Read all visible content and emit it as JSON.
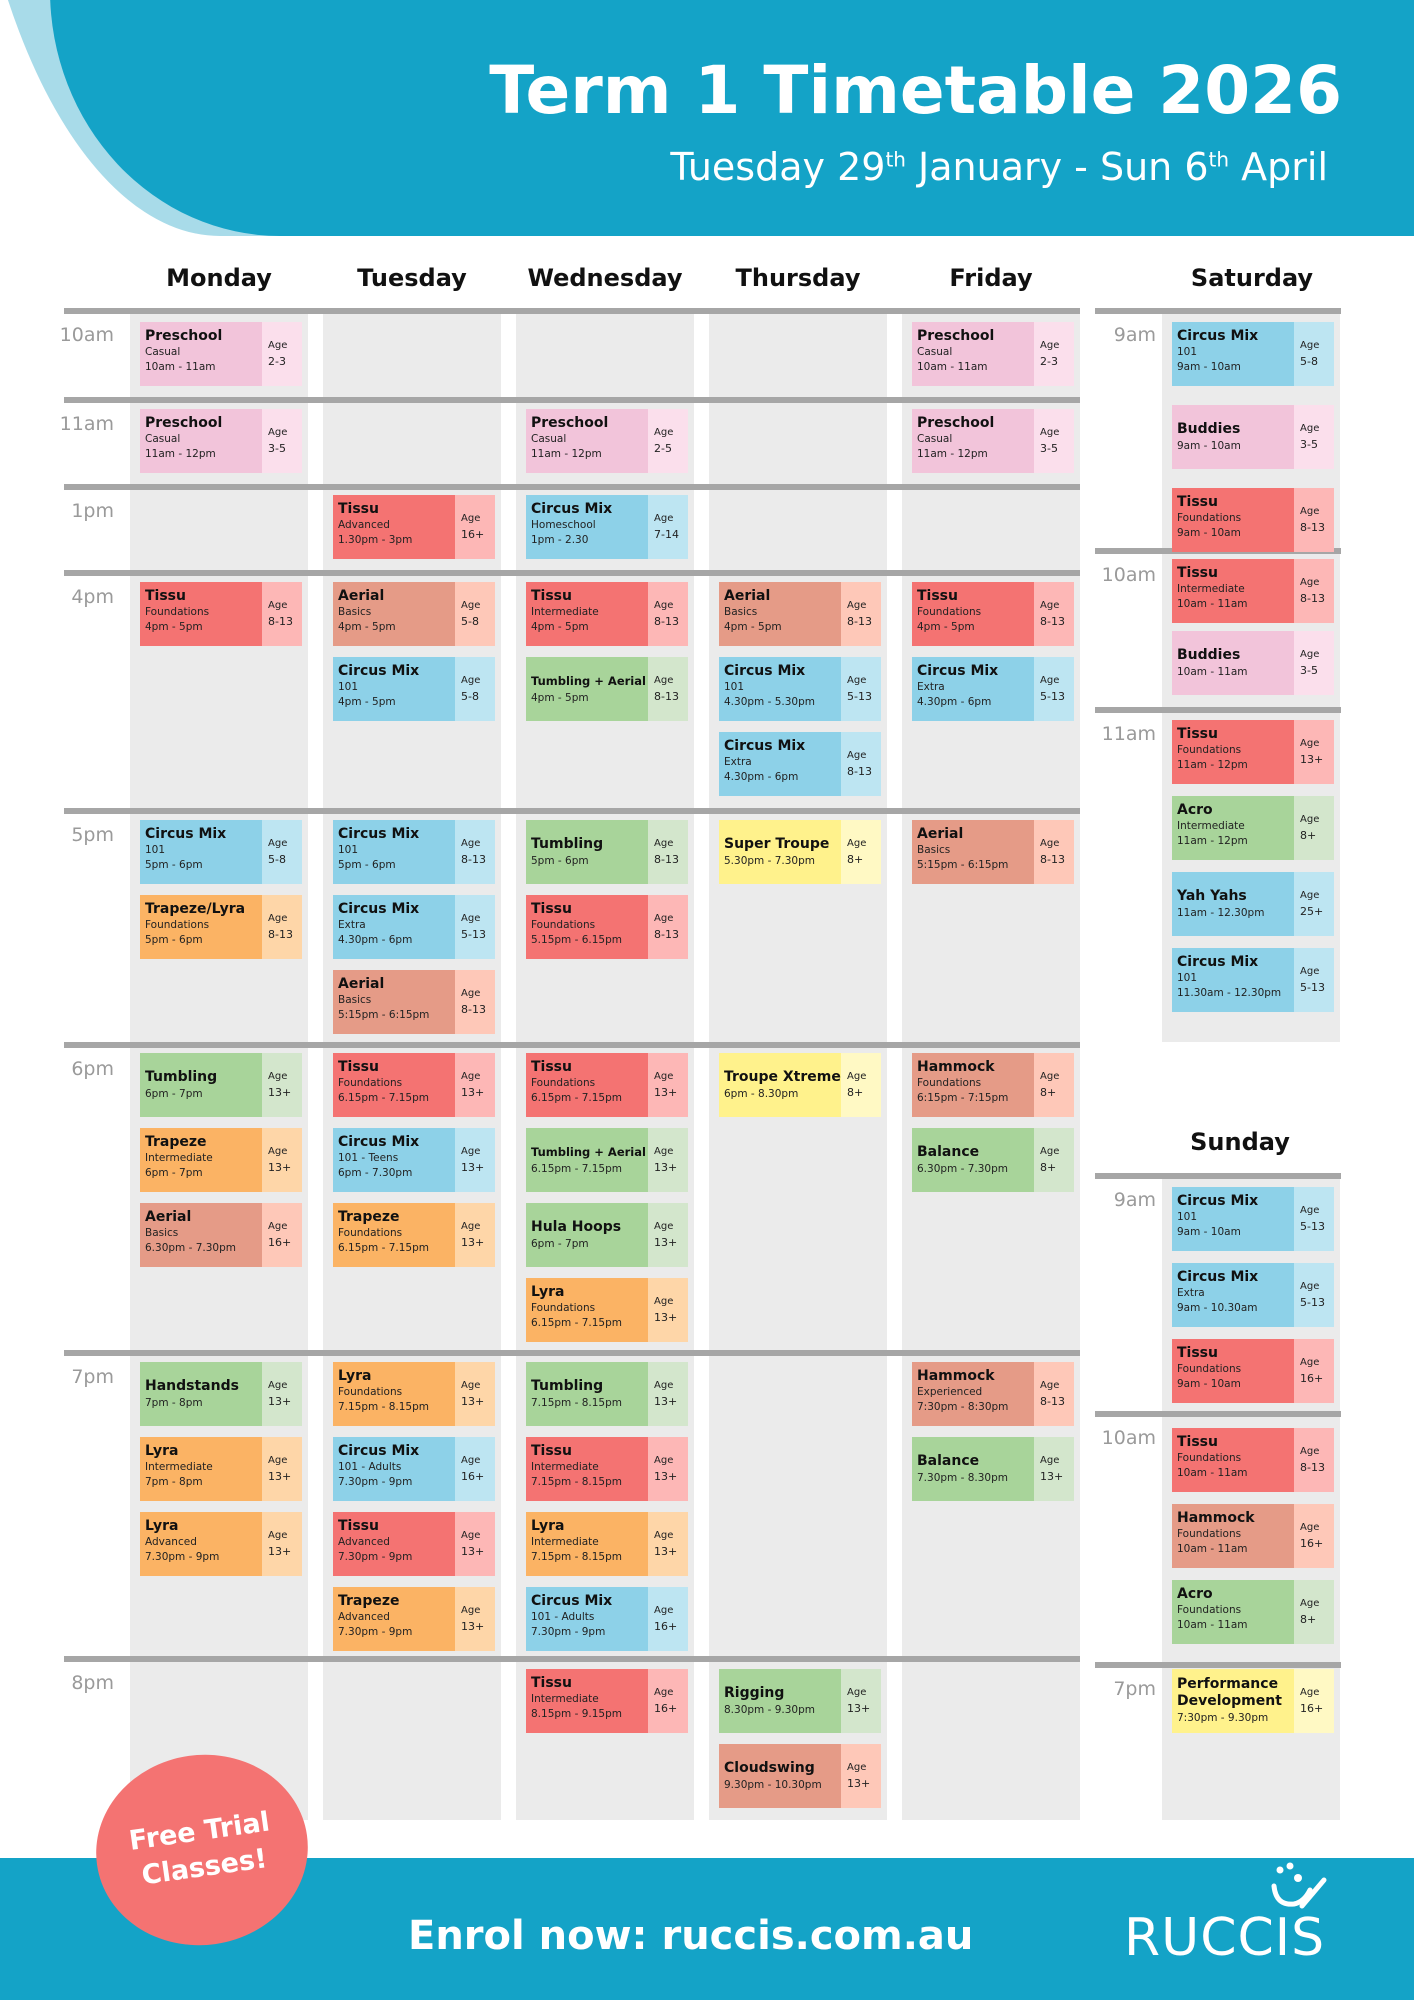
{
  "header": {
    "title": "Term 1 Timetable 2026",
    "subtitle_start": "Tuesday 29",
    "subtitle_sup1": "th",
    "subtitle_mid": " January - Sun 6",
    "subtitle_sup2": "th",
    "subtitle_end": " April"
  },
  "colors": {
    "brand_blue": "#14a3c7",
    "pink": "#f2c4da",
    "pink_age": "#fbdfec",
    "red": "#f47372",
    "red_age": "#fdb7b6",
    "salmon": "#e59b87",
    "salmon_age": "#fec8b8",
    "blue": "#8dd1e8",
    "blue_age": "#bde5f2",
    "green": "#a8d49a",
    "green_age": "#d3e6cc",
    "orange": "#fbb364",
    "orange_age": "#fed6a8",
    "yellow": "#fff28c",
    "yellow_age": "#fff9c4",
    "badge": "#f47372"
  },
  "weekdays": [
    "Monday",
    "Tuesday",
    "Wednesday",
    "Thursday",
    "Friday"
  ],
  "weekday_times": [
    "10am",
    "11am",
    "1pm",
    "4pm",
    "5pm",
    "6pm",
    "7pm",
    "8pm"
  ],
  "saturday": {
    "label": "Saturday",
    "times": [
      "9am",
      "10am",
      "11am"
    ]
  },
  "sunday": {
    "label": "Sunday",
    "times": [
      "9am",
      "10am",
      "7pm"
    ]
  },
  "age_label": "Age",
  "classes": [
    {
      "day": "Monday",
      "slot": "10am",
      "name": "Preschool",
      "level": "Casual",
      "time": "10am - 11am",
      "age": "2-3",
      "color": "pink"
    },
    {
      "day": "Friday",
      "slot": "10am",
      "name": "Preschool",
      "level": "Casual",
      "time": "10am - 11am",
      "age": "2-3",
      "color": "pink"
    },
    {
      "day": "Monday",
      "slot": "11am",
      "name": "Preschool",
      "level": "Casual",
      "time": "11am - 12pm",
      "age": "3-5",
      "color": "pink"
    },
    {
      "day": "Wednesday",
      "slot": "11am",
      "name": "Preschool",
      "level": "Casual",
      "time": "11am - 12pm",
      "age": "2-5",
      "color": "pink"
    },
    {
      "day": "Friday",
      "slot": "11am",
      "name": "Preschool",
      "level": "Casual",
      "time": "11am - 12pm",
      "age": "3-5",
      "color": "pink"
    },
    {
      "day": "Tuesday",
      "slot": "1pm",
      "name": "Tissu",
      "level": "Advanced",
      "time": "1.30pm - 3pm",
      "age": "16+",
      "color": "red"
    },
    {
      "day": "Wednesday",
      "slot": "1pm",
      "name": "Circus Mix",
      "level": "Homeschool",
      "time": "1pm - 2.30",
      "age": "7-14",
      "color": "blue"
    },
    {
      "day": "Monday",
      "slot": "4pm",
      "name": "Tissu",
      "level": "Foundations",
      "time": "4pm - 5pm",
      "age": "8-13",
      "color": "red"
    },
    {
      "day": "Tuesday",
      "slot": "4pm",
      "name": "Aerial",
      "level": "Basics",
      "time": "4pm - 5pm",
      "age": "5-8",
      "color": "salmon"
    },
    {
      "day": "Tuesday",
      "slot": "4pm",
      "name": "Circus Mix",
      "level": "101",
      "time": "4pm - 5pm",
      "age": "5-8",
      "color": "blue"
    },
    {
      "day": "Wednesday",
      "slot": "4pm",
      "name": "Tissu",
      "level": "Intermediate",
      "time": "4pm - 5pm",
      "age": "8-13",
      "color": "red"
    },
    {
      "day": "Wednesday",
      "slot": "4pm",
      "name": "Tumbling + Aerial",
      "level": "",
      "time": "4pm - 5pm",
      "age": "8-13",
      "color": "green",
      "small": true
    },
    {
      "day": "Thursday",
      "slot": "4pm",
      "name": "Aerial",
      "level": "Basics",
      "time": "4pm - 5pm",
      "age": "8-13",
      "color": "salmon"
    },
    {
      "day": "Thursday",
      "slot": "4pm",
      "name": "Circus Mix",
      "level": "101",
      "time": "4.30pm - 5.30pm",
      "age": "5-13",
      "color": "blue"
    },
    {
      "day": "Thursday",
      "slot": "4pm",
      "name": "Circus Mix",
      "level": "Extra",
      "time": "4.30pm - 6pm",
      "age": "8-13",
      "color": "blue"
    },
    {
      "day": "Friday",
      "slot": "4pm",
      "name": "Tissu",
      "level": "Foundations",
      "time": "4pm - 5pm",
      "age": "8-13",
      "color": "red"
    },
    {
      "day": "Friday",
      "slot": "4pm",
      "name": "Circus Mix",
      "level": "Extra",
      "time": "4.30pm - 6pm",
      "age": "5-13",
      "color": "blue"
    },
    {
      "day": "Monday",
      "slot": "5pm",
      "name": "Circus Mix",
      "level": "101",
      "time": "5pm - 6pm",
      "age": "5-8",
      "color": "blue"
    },
    {
      "day": "Monday",
      "slot": "5pm",
      "name": "Trapeze/Lyra",
      "level": "Foundations",
      "time": "5pm - 6pm",
      "age": "8-13",
      "color": "orange"
    },
    {
      "day": "Tuesday",
      "slot": "5pm",
      "name": "Circus Mix",
      "level": "101",
      "time": "5pm - 6pm",
      "age": "8-13",
      "color": "blue"
    },
    {
      "day": "Tuesday",
      "slot": "5pm",
      "name": "Circus Mix",
      "level": "Extra",
      "time": "4.30pm - 6pm",
      "age": "5-13",
      "color": "blue"
    },
    {
      "day": "Tuesday",
      "slot": "5pm",
      "name": "Aerial",
      "level": "Basics",
      "time": "5:15pm - 6:15pm",
      "age": "8-13",
      "color": "salmon"
    },
    {
      "day": "Wednesday",
      "slot": "5pm",
      "name": "Tumbling",
      "level": "",
      "time": "5pm - 6pm",
      "age": "8-13",
      "color": "green"
    },
    {
      "day": "Wednesday",
      "slot": "5pm",
      "name": "Tissu",
      "level": "Foundations",
      "time": "5.15pm - 6.15pm",
      "age": "8-13",
      "color": "red"
    },
    {
      "day": "Thursday",
      "slot": "5pm",
      "name": "Super Troupe",
      "level": "",
      "time": "5.30pm - 7.30pm",
      "age": "8+",
      "color": "yellow"
    },
    {
      "day": "Friday",
      "slot": "5pm",
      "name": "Aerial",
      "level": "Basics",
      "time": "5:15pm - 6:15pm",
      "age": "8-13",
      "color": "salmon"
    },
    {
      "day": "Monday",
      "slot": "6pm",
      "name": "Tumbling",
      "level": "",
      "time": "6pm - 7pm",
      "age": "13+",
      "color": "green"
    },
    {
      "day": "Monday",
      "slot": "6pm",
      "name": "Trapeze",
      "level": "Intermediate",
      "time": "6pm - 7pm",
      "age": "13+",
      "color": "orange"
    },
    {
      "day": "Monday",
      "slot": "6pm",
      "name": "Aerial",
      "level": "Basics",
      "time": "6.30pm - 7.30pm",
      "age": "16+",
      "color": "salmon"
    },
    {
      "day": "Tuesday",
      "slot": "6pm",
      "name": "Tissu",
      "level": "Foundations",
      "time": "6.15pm - 7.15pm",
      "age": "13+",
      "color": "red"
    },
    {
      "day": "Tuesday",
      "slot": "6pm",
      "name": "Circus Mix",
      "level": "101 - Teens",
      "time": "6pm - 7.30pm",
      "age": "13+",
      "color": "blue"
    },
    {
      "day": "Tuesday",
      "slot": "6pm",
      "name": "Trapeze",
      "level": "Foundations",
      "time": "6.15pm - 7.15pm",
      "age": "13+",
      "color": "orange"
    },
    {
      "day": "Wednesday",
      "slot": "6pm",
      "name": "Tissu",
      "level": "Foundations",
      "time": "6.15pm - 7.15pm",
      "age": "13+",
      "color": "red"
    },
    {
      "day": "Wednesday",
      "slot": "6pm",
      "name": "Tumbling + Aerial",
      "level": "",
      "time": "6.15pm - 7.15pm",
      "age": "13+",
      "color": "green",
      "small": true
    },
    {
      "day": "Wednesday",
      "slot": "6pm",
      "name": "Hula Hoops",
      "level": "",
      "time": "6pm - 7pm",
      "age": "13+",
      "color": "green"
    },
    {
      "day": "Wednesday",
      "slot": "6pm",
      "name": "Lyra",
      "level": "Foundations",
      "time": "6.15pm - 7.15pm",
      "age": "13+",
      "color": "orange"
    },
    {
      "day": "Thursday",
      "slot": "6pm",
      "name": "Troupe Xtreme",
      "level": "",
      "time": "6pm - 8.30pm",
      "age": "8+",
      "color": "yellow"
    },
    {
      "day": "Friday",
      "slot": "6pm",
      "name": "Hammock",
      "level": "Foundations",
      "time": "6:15pm - 7:15pm",
      "age": "8+",
      "color": "salmon"
    },
    {
      "day": "Friday",
      "slot": "6pm",
      "name": "Balance",
      "level": "",
      "time": "6.30pm - 7.30pm",
      "age": "8+",
      "color": "green"
    },
    {
      "day": "Monday",
      "slot": "7pm",
      "name": "Handstands",
      "level": "",
      "time": "7pm - 8pm",
      "age": "13+",
      "color": "green"
    },
    {
      "day": "Monday",
      "slot": "7pm",
      "name": "Lyra",
      "level": "Intermediate",
      "time": "7pm - 8pm",
      "age": "13+",
      "color": "orange"
    },
    {
      "day": "Monday",
      "slot": "7pm",
      "name": "Lyra",
      "level": "Advanced",
      "time": "7.30pm - 9pm",
      "age": "13+",
      "color": "orange"
    },
    {
      "day": "Tuesday",
      "slot": "7pm",
      "name": "Lyra",
      "level": "Foundations",
      "time": "7.15pm - 8.15pm",
      "age": "13+",
      "color": "orange"
    },
    {
      "day": "Tuesday",
      "slot": "7pm",
      "name": "Circus Mix",
      "level": "101 - Adults",
      "time": "7.30pm - 9pm",
      "age": "16+",
      "color": "blue"
    },
    {
      "day": "Tuesday",
      "slot": "7pm",
      "name": "Tissu",
      "level": "Advanced",
      "time": "7.30pm - 9pm",
      "age": "13+",
      "color": "red"
    },
    {
      "day": "Tuesday",
      "slot": "7pm",
      "name": "Trapeze",
      "level": "Advanced",
      "time": "7.30pm - 9pm",
      "age": "13+",
      "color": "orange"
    },
    {
      "day": "Wednesday",
      "slot": "7pm",
      "name": "Tumbling",
      "level": "",
      "time": "7.15pm - 8.15pm",
      "age": "13+",
      "color": "green"
    },
    {
      "day": "Wednesday",
      "slot": "7pm",
      "name": "Tissu",
      "level": "Intermediate",
      "time": "7.15pm - 8.15pm",
      "age": "13+",
      "color": "red"
    },
    {
      "day": "Wednesday",
      "slot": "7pm",
      "name": "Lyra",
      "level": "Intermediate",
      "time": "7.15pm - 8.15pm",
      "age": "13+",
      "color": "orange"
    },
    {
      "day": "Wednesday",
      "slot": "7pm",
      "name": "Circus Mix",
      "level": "101 - Adults",
      "time": "7.30pm - 9pm",
      "age": "16+",
      "color": "blue"
    },
    {
      "day": "Friday",
      "slot": "7pm",
      "name": "Hammock",
      "level": "Experienced",
      "time": "7:30pm - 8:30pm",
      "age": "8-13",
      "color": "salmon"
    },
    {
      "day": "Friday",
      "slot": "7pm",
      "name": "Balance",
      "level": "",
      "time": "7.30pm - 8.30pm",
      "age": "13+",
      "color": "green"
    },
    {
      "day": "Wednesday",
      "slot": "8pm",
      "name": "Tissu",
      "level": "Intermediate",
      "time": "8.15pm - 9.15pm",
      "age": "16+",
      "color": "red"
    },
    {
      "day": "Thursday",
      "slot": "8pm",
      "name": "Rigging",
      "level": "",
      "time": "8.30pm - 9.30pm",
      "age": "13+",
      "color": "green"
    },
    {
      "day": "Thursday",
      "slot": "8pm",
      "name": "Cloudswing",
      "level": "",
      "time": "9.30pm - 10.30pm",
      "age": "13+",
      "color": "salmon"
    },
    {
      "day": "Saturday",
      "slot": "9am",
      "name": "Circus Mix",
      "level": "101",
      "time": "9am - 10am",
      "age": "5-8",
      "color": "blue"
    },
    {
      "day": "Saturday",
      "slot": "9am",
      "name": "Buddies",
      "level": "",
      "time": "9am - 10am",
      "age": "3-5",
      "color": "pink"
    },
    {
      "day": "Saturday",
      "slot": "9am",
      "name": "Tissu",
      "level": "Foundations",
      "time": "9am - 10am",
      "age": "8-13",
      "color": "red"
    },
    {
      "day": "Saturday",
      "slot": "10am",
      "name": "Tissu",
      "level": "Intermediate",
      "time": "10am - 11am",
      "age": "8-13",
      "color": "red"
    },
    {
      "day": "Saturday",
      "slot": "10am",
      "name": "Buddies",
      "level": "",
      "time": "10am - 11am",
      "age": "3-5",
      "color": "pink"
    },
    {
      "day": "Saturday",
      "slot": "11am",
      "name": "Tissu",
      "level": "Foundations",
      "time": "11am - 12pm",
      "age": "13+",
      "color": "red"
    },
    {
      "day": "Saturday",
      "slot": "11am",
      "name": "Acro",
      "level": "Intermediate",
      "time": "11am - 12pm",
      "age": "8+",
      "color": "green"
    },
    {
      "day": "Saturday",
      "slot": "11am",
      "name": "Yah Yahs",
      "level": "",
      "time": "11am - 12.30pm",
      "age": "25+",
      "color": "blue"
    },
    {
      "day": "Saturday",
      "slot": "11am",
      "name": "Circus Mix",
      "level": "101",
      "time": "11.30am - 12.30pm",
      "age": "5-13",
      "color": "blue"
    },
    {
      "day": "Sunday",
      "slot": "9am",
      "name": "Circus Mix",
      "level": "101",
      "time": "9am - 10am",
      "age": "5-13",
      "color": "blue"
    },
    {
      "day": "Sunday",
      "slot": "9am",
      "name": "Circus Mix",
      "level": "Extra",
      "time": "9am - 10.30am",
      "age": "5-13",
      "color": "blue"
    },
    {
      "day": "Sunday",
      "slot": "9am",
      "name": "Tissu",
      "level": "Foundations",
      "time": "9am - 10am",
      "age": "16+",
      "color": "red"
    },
    {
      "day": "Sunday",
      "slot": "10am",
      "name": "Tissu",
      "level": "Foundations",
      "time": "10am - 11am",
      "age": "8-13",
      "color": "red"
    },
    {
      "day": "Sunday",
      "slot": "10am",
      "name": "Hammock",
      "level": "Foundations",
      "time": "10am - 11am",
      "age": "16+",
      "color": "salmon"
    },
    {
      "day": "Sunday",
      "slot": "10am",
      "name": "Acro",
      "level": "Foundations",
      "time": "10am - 11am",
      "age": "8+",
      "color": "green"
    },
    {
      "day": "Sunday",
      "slot": "7pm",
      "name": "Performance Development",
      "level": "",
      "time": "7:30pm - 9.30pm",
      "age": "16+",
      "color": "yellow",
      "two_line": true
    }
  ],
  "footer": {
    "enrol": "Enrol now: ruccis.com.au",
    "badge_line1": "Free Trial",
    "badge_line2": "Classes!",
    "logo": "RUCCIS"
  }
}
